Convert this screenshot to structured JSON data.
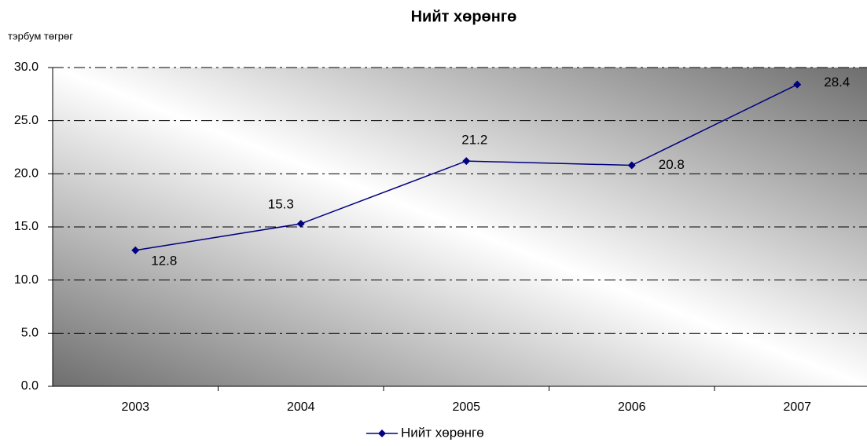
{
  "chart_data": {
    "type": "line",
    "title": "Нийт хөрөнгө",
    "y_label": "тэрбум төгрөг",
    "categories": [
      "2003",
      "2004",
      "2005",
      "2006",
      "2007"
    ],
    "series": [
      {
        "name": "Нийт хөрөнгө",
        "color": "#000080",
        "values": [
          12.8,
          15.3,
          21.2,
          20.8,
          28.4
        ]
      }
    ],
    "ylim": [
      0,
      30
    ],
    "yticks": [
      {
        "value": 0,
        "label": "0.0"
      },
      {
        "value": 5,
        "label": "5.0"
      },
      {
        "value": 10,
        "label": "10.0"
      },
      {
        "value": 15,
        "label": "15.0"
      },
      {
        "value": 20,
        "label": "20.0"
      },
      {
        "value": 25,
        "label": "25.0"
      },
      {
        "value": 30,
        "label": "30.0"
      }
    ],
    "grid": true,
    "legend": "bottom"
  }
}
